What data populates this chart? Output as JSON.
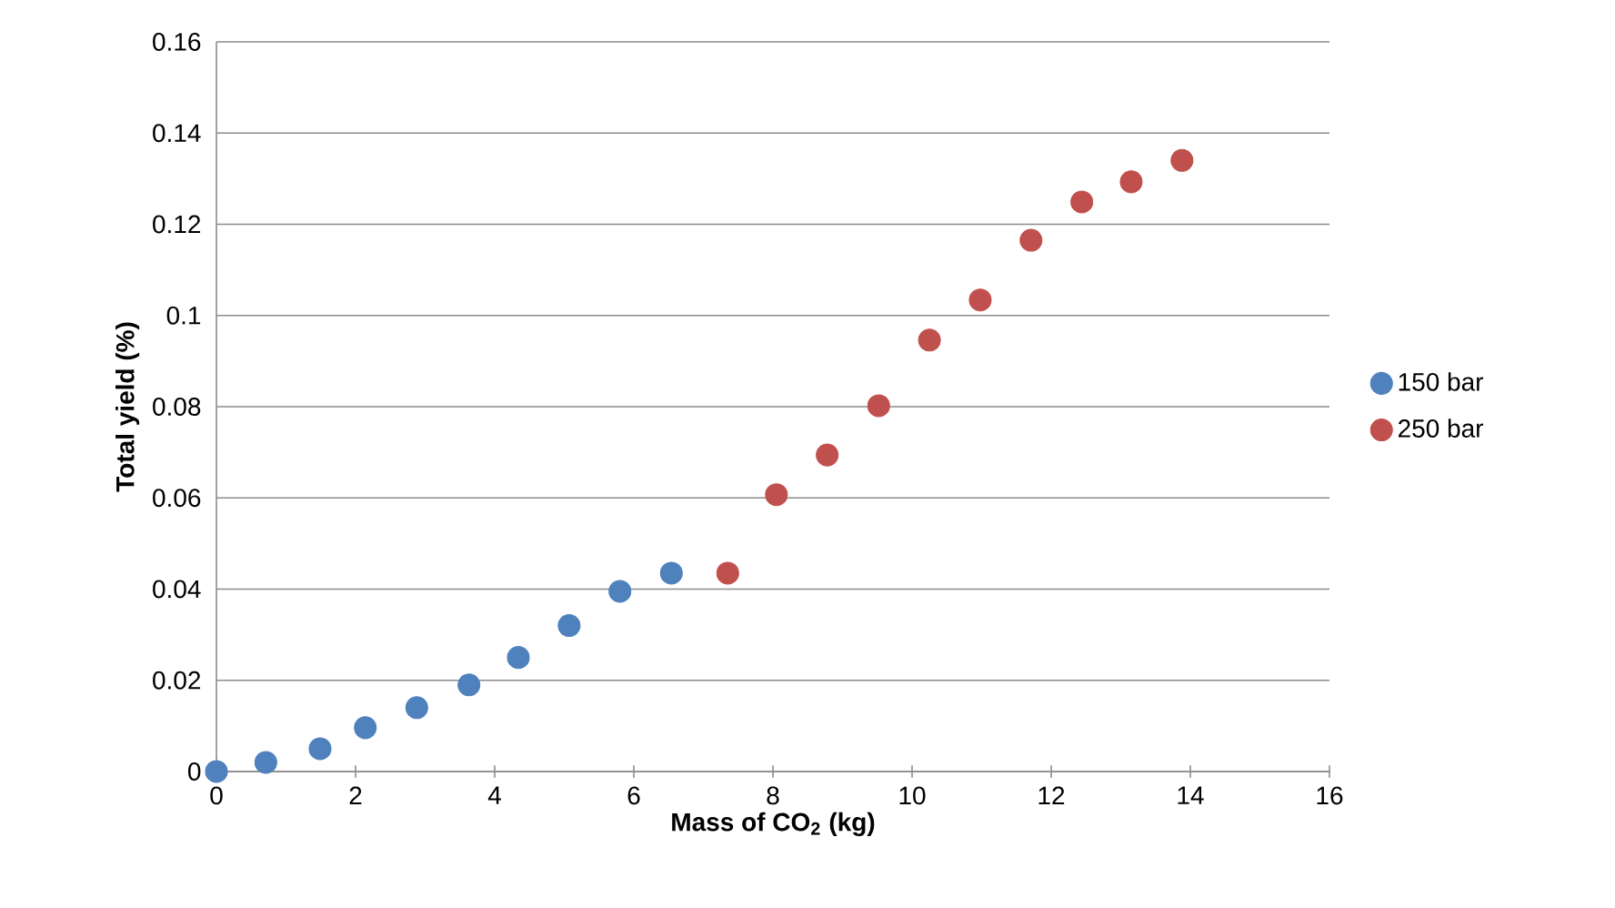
{
  "chart_data": {
    "type": "scatter",
    "xlabel": "Mass of CO$_{2}$ (kg)",
    "ylabel": "Total yield (%)",
    "xlim": [
      0,
      16
    ],
    "xticks": [
      0,
      2,
      4,
      6,
      8,
      10,
      12,
      14,
      16
    ],
    "ylim": [
      0,
      0.16
    ],
    "yticks": [
      0,
      0.02,
      0.04,
      0.06,
      0.08,
      0.1,
      0.12,
      0.14,
      0.16
    ],
    "grid": "y",
    "legend": "right",
    "marker": "circle",
    "series": [
      {
        "name": "150 bar",
        "color": "#4f81bd",
        "x": [
          0,
          0.71,
          1.49,
          2.14,
          2.88,
          3.63,
          4.34,
          5.07,
          5.8,
          6.54
        ],
        "values": [
          0,
          0.002,
          0.005,
          0.0096,
          0.014,
          0.019,
          0.025,
          0.032,
          0.0395,
          0.0435
        ]
      },
      {
        "name": "250 bar",
        "color": "#c0504d",
        "x": [
          7.35,
          8.05,
          8.78,
          9.52,
          10.25,
          10.98,
          11.71,
          12.44,
          13.15,
          13.88
        ],
        "values": [
          0.0435,
          0.0607,
          0.0694,
          0.0802,
          0.0946,
          0.1034,
          0.1165,
          0.1249,
          0.1293,
          0.134
        ]
      }
    ]
  }
}
